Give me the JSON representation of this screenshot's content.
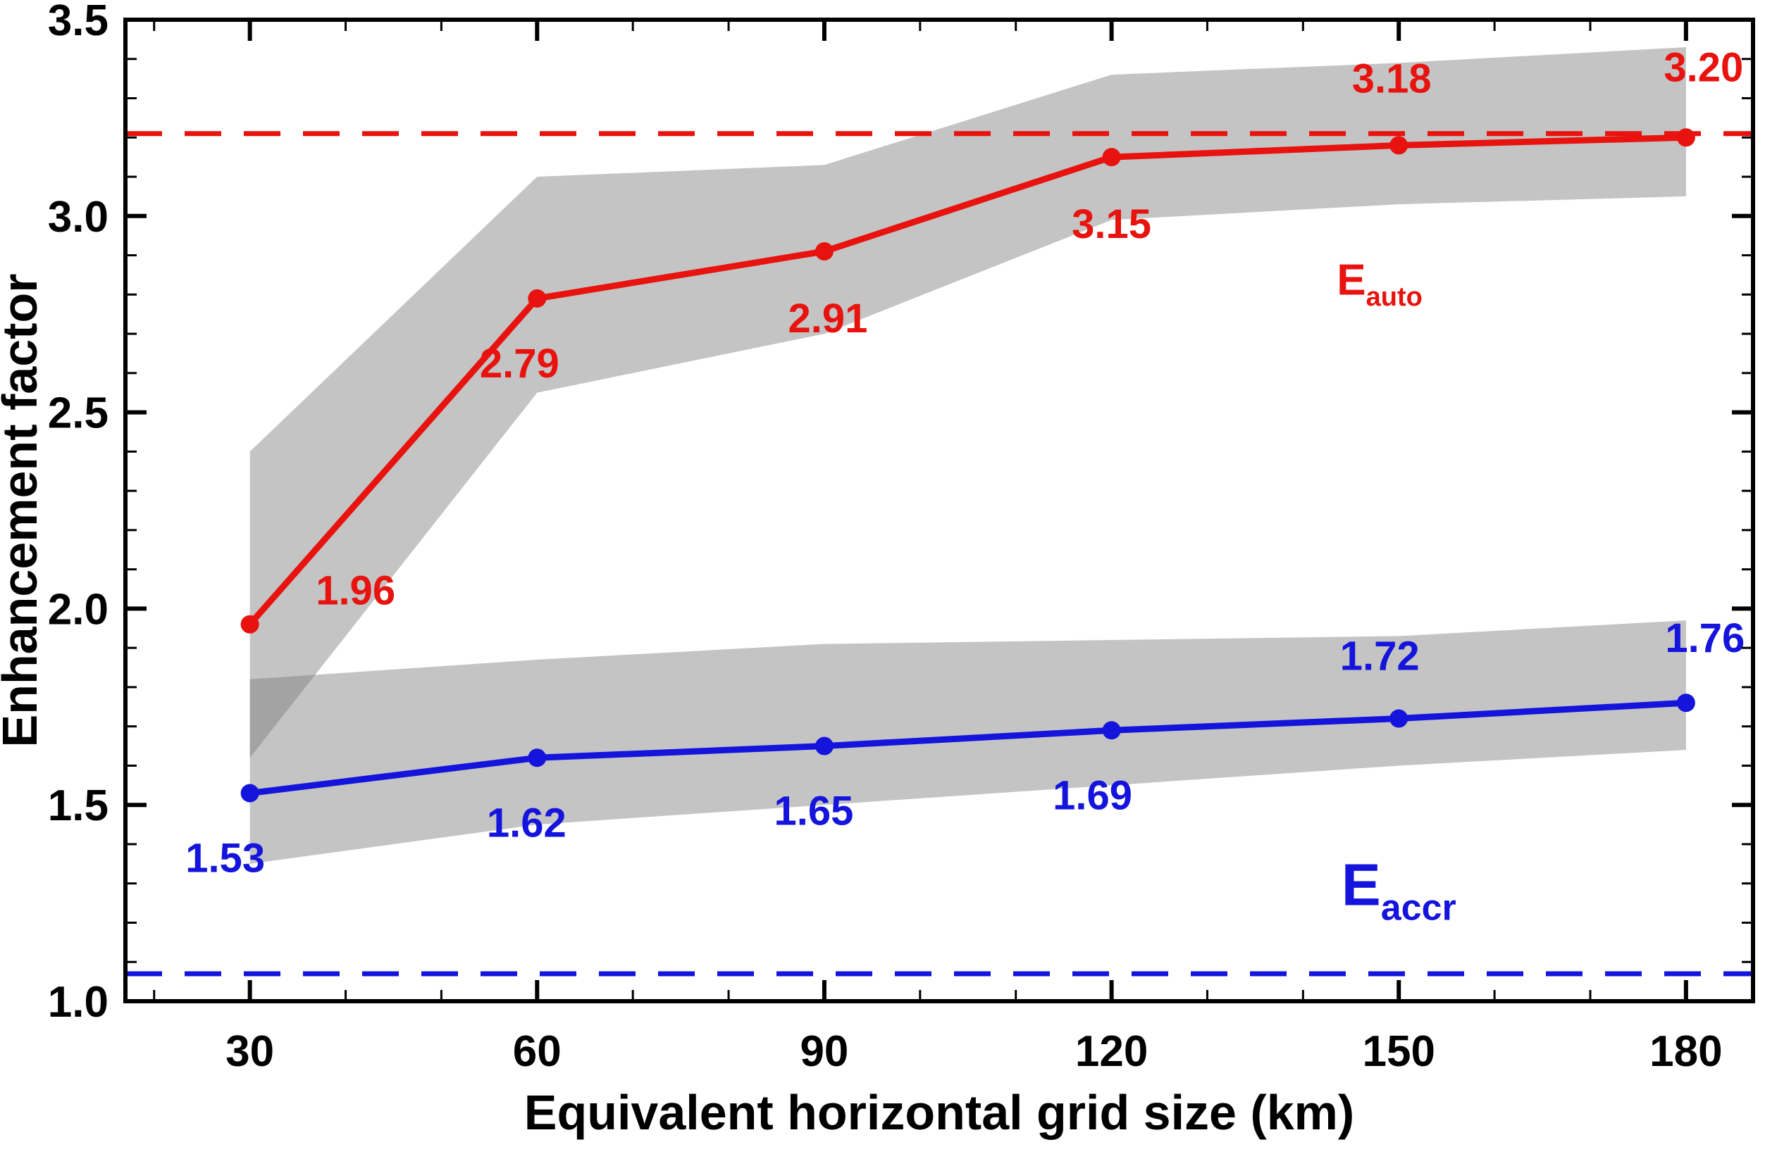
{
  "page": {
    "background": "#ffffff"
  },
  "chart_data": {
    "type": "line",
    "title": "",
    "xlabel": "Equivalent horizontal grid size (km)",
    "ylabel": "Enhancement factor",
    "grid": false,
    "legend_position": "inline-annotations",
    "x": [
      30,
      60,
      90,
      120,
      150,
      180
    ],
    "xlim": [
      17,
      187
    ],
    "ylim": [
      1.0,
      3.5
    ],
    "xticks": [
      30,
      60,
      90,
      120,
      150,
      180
    ],
    "xtick_labels": [
      "30",
      "60",
      "90",
      "120",
      "150",
      "180"
    ],
    "yticks": [
      1.0,
      1.5,
      2.0,
      2.5,
      3.0,
      3.5
    ],
    "ytick_labels": [
      "1.0",
      "1.5",
      "2.0",
      "2.5",
      "3.0",
      "3.5"
    ],
    "x_minor_step": 10,
    "y_minor_step": 0.1,
    "band_color": "rgba(124,124,124,0.45)",
    "axis_color": "#000000",
    "series": [
      {
        "name": "E_auto",
        "color": "#e8120e",
        "values": [
          1.96,
          2.79,
          2.91,
          3.15,
          3.18,
          3.2
        ],
        "point_labels": [
          "1.96",
          "2.79",
          "2.91",
          "3.15",
          "3.18",
          "3.20"
        ],
        "label_offsets": [
          [
            150,
            -48
          ],
          [
            -25,
            92
          ],
          [
            5,
            95
          ],
          [
            0,
            95
          ],
          [
            -10,
            -95
          ],
          [
            25,
            -100
          ]
        ],
        "band_upper": [
          2.4,
          3.1,
          3.13,
          3.36,
          3.39,
          3.43
        ],
        "band_lower": [
          1.62,
          2.55,
          2.7,
          2.99,
          3.03,
          3.05
        ],
        "ref_line": 3.21
      },
      {
        "name": "E_accr",
        "color": "#1414dc",
        "values": [
          1.53,
          1.62,
          1.65,
          1.69,
          1.72,
          1.76
        ],
        "point_labels": [
          "1.53",
          "1.62",
          "1.65",
          "1.69",
          "1.72",
          "1.76"
        ],
        "label_offsets": [
          [
            -35,
            92
          ],
          [
            -15,
            92
          ],
          [
            -15,
            92
          ],
          [
            -27,
            92
          ],
          [
            -27,
            -89
          ],
          [
            27,
            -92
          ]
        ],
        "band_upper": [
          1.82,
          1.87,
          1.91,
          1.92,
          1.93,
          1.97
        ],
        "band_lower": [
          1.35,
          1.45,
          1.5,
          1.55,
          1.6,
          1.64
        ],
        "ref_line": 1.07
      }
    ],
    "annotations": [
      {
        "text_main": "E",
        "text_sub": "auto",
        "x": 148,
        "y": 2.8,
        "color": "#e8120e",
        "size": 62
      },
      {
        "text_main": "E",
        "text_sub": "accr",
        "x": 150,
        "y": 1.245,
        "color": "#1414dc",
        "size": 84
      }
    ]
  }
}
